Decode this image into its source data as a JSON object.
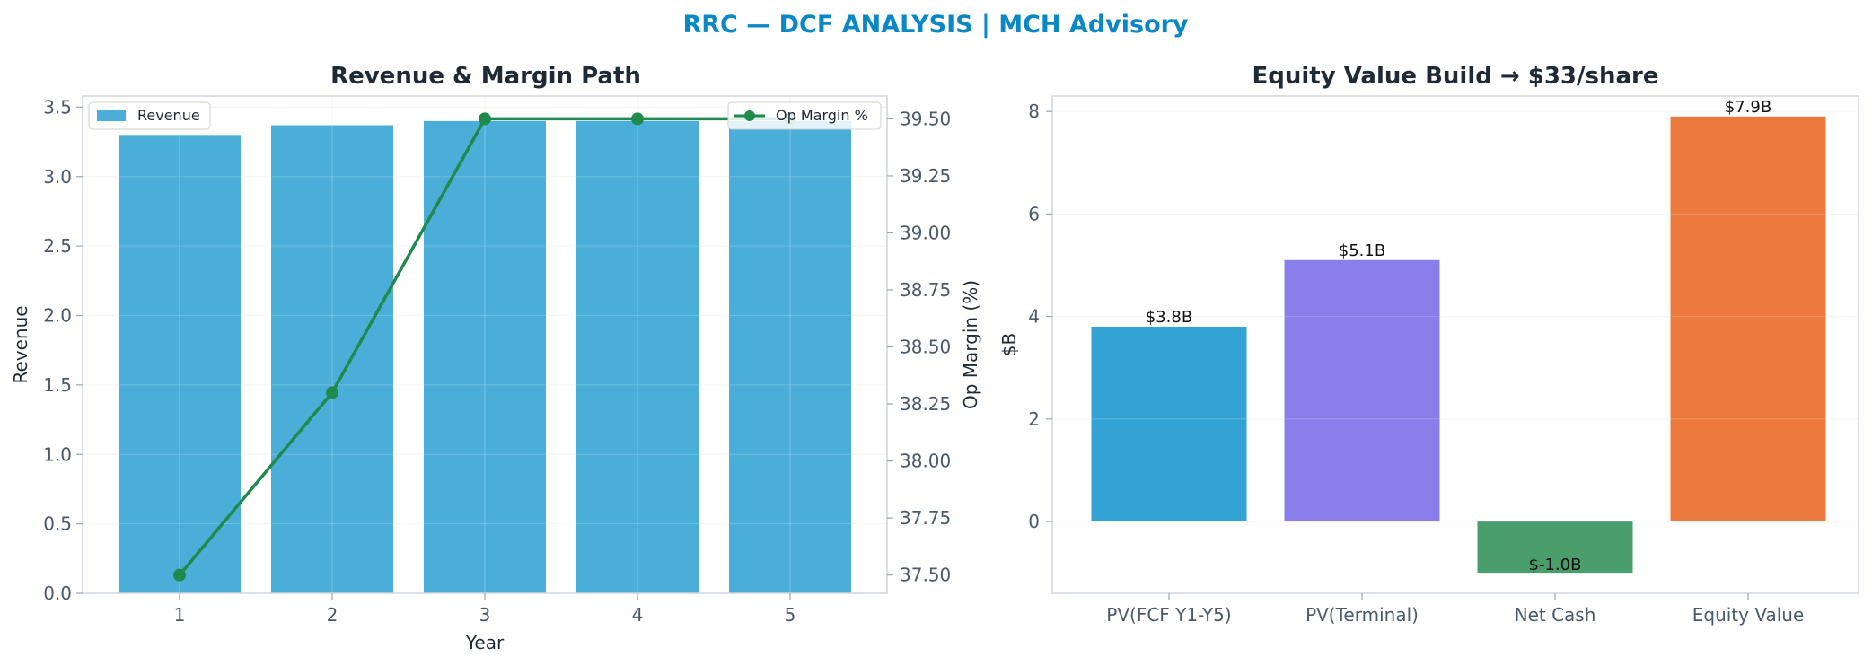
{
  "figure": {
    "suptitle": "RRC — DCF ANALYSIS | MCH Advisory",
    "suptitle_color": "#0a88c6"
  },
  "chart_data": [
    {
      "type": "bar",
      "title": "Revenue & Margin Path",
      "xlabel": "Year",
      "ylabel": "Revenue",
      "y2label": "Op Margin (%)",
      "categories": [
        "1",
        "2",
        "3",
        "4",
        "5"
      ],
      "ylim": [
        0,
        3.58
      ],
      "yticks": [
        "0.0",
        "0.5",
        "1.0",
        "1.5",
        "2.0",
        "2.5",
        "3.0",
        "3.5"
      ],
      "y2lim": [
        37.42,
        39.6
      ],
      "y2ticks": [
        "37.50",
        "37.75",
        "38.00",
        "38.25",
        "38.50",
        "38.75",
        "39.00",
        "39.25",
        "39.50"
      ],
      "grid": true,
      "series": [
        {
          "name": "Revenue",
          "kind": "bar",
          "axis": "left",
          "color": "#4aaed9",
          "values": [
            3.3,
            3.37,
            3.4,
            3.4,
            3.4
          ]
        },
        {
          "name": "Op Margin %",
          "kind": "line",
          "axis": "right",
          "color": "#1f8a4c",
          "values": [
            37.5,
            38.3,
            39.5,
            39.5,
            39.5
          ]
        }
      ],
      "legend": [
        "upper-left",
        "upper-right"
      ]
    },
    {
      "type": "bar",
      "title": "Equity Value Build → $33/share",
      "xlabel": "",
      "ylabel": "$B",
      "categories": [
        "PV(FCF Y1-Y5)",
        "PV(Terminal)",
        "Net Cash",
        "Equity Value"
      ],
      "values": [
        3.8,
        5.1,
        -1.0,
        7.9
      ],
      "labels": [
        "$3.8B",
        "$5.1B",
        "$-1.0B",
        "$7.9B"
      ],
      "colors": [
        "#33a3d6",
        "#8a7eea",
        "#4a9e6b",
        "#ec7a3e"
      ],
      "ylim": [
        -1.4,
        8.3
      ],
      "yticks": [
        "0",
        "2",
        "4",
        "6",
        "8"
      ],
      "grid": true
    }
  ]
}
